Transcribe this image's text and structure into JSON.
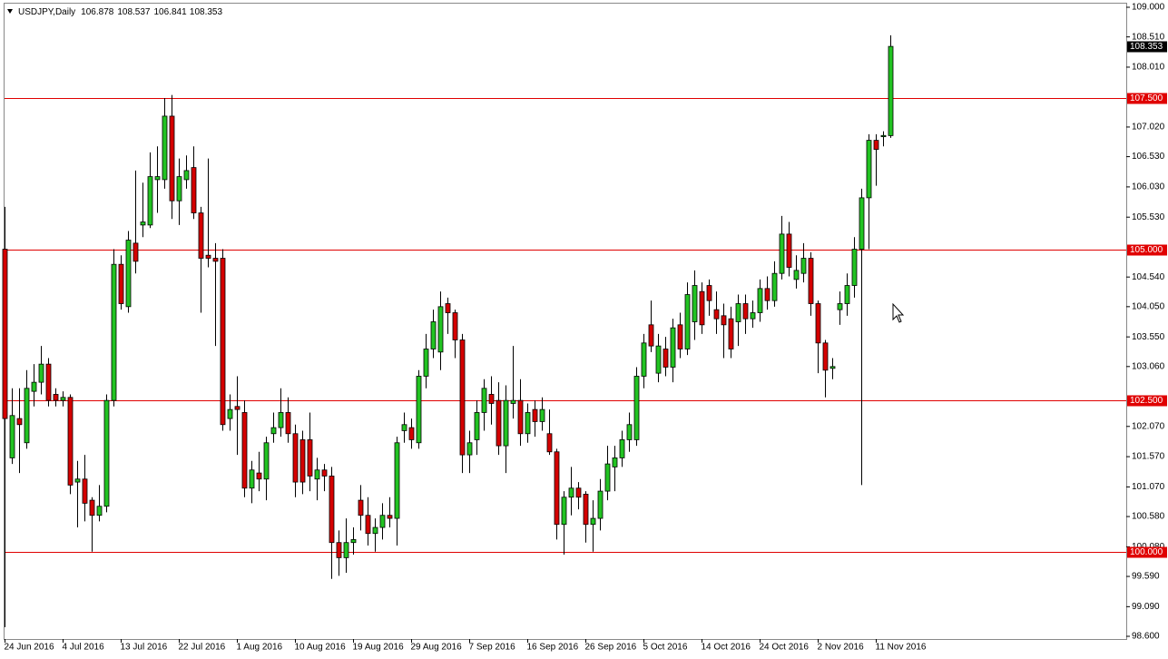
{
  "chart_data": {
    "type": "candlestick",
    "symbol": "USDJPY,Daily",
    "up_color": "#22c322",
    "down_color": "#d40000",
    "level_color": "#e00000",
    "categories": [
      "24 Jun 2016",
      null,
      null,
      null,
      null,
      null,
      null,
      null,
      "4 Jul 2016",
      null,
      null,
      null,
      null,
      null,
      null,
      null,
      "13 Jul 2016",
      null,
      null,
      null,
      null,
      null,
      null,
      null,
      "22 Jul 2016",
      null,
      null,
      null,
      null,
      null,
      null,
      null,
      "1 Aug 2016",
      null,
      null,
      null,
      null,
      null,
      null,
      null,
      "10 Aug 2016",
      null,
      null,
      null,
      null,
      null,
      null,
      null,
      "19 Aug 2016",
      null,
      null,
      null,
      null,
      null,
      null,
      null,
      "29 Aug 2016",
      null,
      null,
      null,
      null,
      null,
      null,
      null,
      "7 Sep 2016",
      null,
      null,
      null,
      null,
      null,
      null,
      null,
      "16 Sep 2016",
      null,
      null,
      null,
      null,
      null,
      null,
      null,
      "26 Sep 2016",
      null,
      null,
      null,
      null,
      null,
      null,
      null,
      "5 Oct 2016",
      null,
      null,
      null,
      null,
      null,
      null,
      null,
      "14 Oct 2016",
      null,
      null,
      null,
      null,
      null,
      null,
      null,
      "24 Oct 2016",
      null,
      null,
      null,
      null,
      null,
      null,
      null,
      "2 Nov 2016",
      null,
      null,
      null,
      null,
      null,
      null,
      null,
      "11 Nov 2016",
      null,
      null
    ],
    "open": [
      105.0,
      101.55,
      102.2,
      101.8,
      102.65,
      102.8,
      103.1,
      102.6,
      102.5,
      102.55,
      101.15,
      101.2,
      100.85,
      100.6,
      100.75,
      102.5,
      104.75,
      104.05,
      105.1,
      105.4,
      105.4,
      106.15,
      106.15,
      107.2,
      105.8,
      106.15,
      106.35,
      105.6,
      104.9,
      104.85,
      104.85,
      102.2,
      102.4,
      102.3,
      101.05,
      101.3,
      101.2,
      101.95,
      102.05,
      102.3,
      101.95,
      101.85,
      101.85,
      101.2,
      101.35,
      101.25,
      100.15,
      99.9,
      100.15,
      100.85,
      100.6,
      100.3,
      100.4,
      100.6,
      100.55,
      102.0,
      102.05,
      101.8,
      102.9,
      103.35,
      103.3,
      104.1,
      103.95,
      103.5,
      101.6,
      101.85,
      102.3,
      102.6,
      102.5,
      101.75,
      102.45,
      102.5,
      101.95,
      102.35,
      102.15,
      101.95,
      101.65,
      100.45,
      100.9,
      101.05,
      100.95,
      100.45,
      100.55,
      101.0,
      101.4,
      101.55,
      101.85,
      101.85,
      102.9,
      103.75,
      102.95,
      103.35,
      103.05,
      103.75,
      103.35,
      103.8,
      104.3,
      104.4,
      104.0,
      103.9,
      103.85,
      103.8,
      104.1,
      103.85,
      103.95,
      104.35,
      104.15,
      104.6,
      105.25,
      104.5,
      104.6,
      104.85,
      104.1,
      103.45,
      103.03,
      104.0,
      104.1,
      104.4,
      105.0,
      105.85,
      106.8,
      106.86,
      106.878
    ],
    "high": [
      105.7,
      102.7,
      102.7,
      103.0,
      103.1,
      103.4,
      103.2,
      102.7,
      102.65,
      102.6,
      101.5,
      101.6,
      100.9,
      101.1,
      102.6,
      105.0,
      104.9,
      105.3,
      106.3,
      106.1,
      106.6,
      106.7,
      107.5,
      107.55,
      106.5,
      106.55,
      106.7,
      105.7,
      106.5,
      105.1,
      105.0,
      102.6,
      102.9,
      102.5,
      101.5,
      101.65,
      101.9,
      102.3,
      102.7,
      102.55,
      102.1,
      102.0,
      102.3,
      101.55,
      101.45,
      101.4,
      100.35,
      100.55,
      100.4,
      101.1,
      100.9,
      100.55,
      100.8,
      100.9,
      101.9,
      102.3,
      102.2,
      103.0,
      103.6,
      104.0,
      104.3,
      104.2,
      104.0,
      103.6,
      102.0,
      102.5,
      102.85,
      102.9,
      102.8,
      102.75,
      103.4,
      102.85,
      102.45,
      102.5,
      102.55,
      102.35,
      101.7,
      101.0,
      101.4,
      101.15,
      101.0,
      100.85,
      101.2,
      101.75,
      101.75,
      102.0,
      102.3,
      103.05,
      103.6,
      104.15,
      103.6,
      103.55,
      103.85,
      103.95,
      104.45,
      104.65,
      104.45,
      104.5,
      104.3,
      104.1,
      104.05,
      104.25,
      104.25,
      104.15,
      104.5,
      104.55,
      104.8,
      105.55,
      105.45,
      104.9,
      105.1,
      104.95,
      104.15,
      103.5,
      103.2,
      104.3,
      104.6,
      105.2,
      106.0,
      106.9,
      106.9,
      106.95,
      108.537
    ],
    "low": [
      98.75,
      101.45,
      101.3,
      101.7,
      102.4,
      102.6,
      102.4,
      102.4,
      102.4,
      100.95,
      100.4,
      100.5,
      100.0,
      100.5,
      100.65,
      102.4,
      104.0,
      103.95,
      104.6,
      105.2,
      105.35,
      105.6,
      106.0,
      105.5,
      105.4,
      106.0,
      105.5,
      103.95,
      104.7,
      103.4,
      102.0,
      102.0,
      101.6,
      100.9,
      100.8,
      101.0,
      100.85,
      101.8,
      101.9,
      101.8,
      100.9,
      100.95,
      101.0,
      100.85,
      101.0,
      99.55,
      99.6,
      99.65,
      99.95,
      100.35,
      100.1,
      100.0,
      100.2,
      100.4,
      100.1,
      101.8,
      101.7,
      101.7,
      102.7,
      103.2,
      103.0,
      103.6,
      103.2,
      101.3,
      101.3,
      101.6,
      102.0,
      102.1,
      101.6,
      101.3,
      102.2,
      101.75,
      101.8,
      101.9,
      102.0,
      101.6,
      100.2,
      99.95,
      100.6,
      100.7,
      100.15,
      100.0,
      100.35,
      100.85,
      101.0,
      101.4,
      101.65,
      101.75,
      102.7,
      103.3,
      102.8,
      102.9,
      102.8,
      103.2,
      103.25,
      103.5,
      103.6,
      103.9,
      103.6,
      103.2,
      103.2,
      103.4,
      103.6,
      103.7,
      103.8,
      104.0,
      104.05,
      104.5,
      104.55,
      104.35,
      104.45,
      103.9,
      102.95,
      102.55,
      102.85,
      103.75,
      103.9,
      104.2,
      101.1,
      105.0,
      106.05,
      106.7,
      106.841
    ],
    "close": [
      102.2,
      102.25,
      102.1,
      102.7,
      102.8,
      103.1,
      102.5,
      102.5,
      102.55,
      101.1,
      101.2,
      100.8,
      100.6,
      100.75,
      102.5,
      104.75,
      104.1,
      105.15,
      104.8,
      105.45,
      106.2,
      106.2,
      107.2,
      105.8,
      106.2,
      106.3,
      105.6,
      104.85,
      104.85,
      104.8,
      102.1,
      102.35,
      102.35,
      101.05,
      101.35,
      101.2,
      101.8,
      102.05,
      102.3,
      101.95,
      101.15,
      101.15,
      101.25,
      101.35,
      101.25,
      100.15,
      99.9,
      100.15,
      100.2,
      100.6,
      100.3,
      100.4,
      100.6,
      100.55,
      101.8,
      102.1,
      101.85,
      102.9,
      103.35,
      103.8,
      104.05,
      103.95,
      103.5,
      101.6,
      101.8,
      102.3,
      102.7,
      102.45,
      101.75,
      102.5,
      102.5,
      101.95,
      102.3,
      102.15,
      102.35,
      101.65,
      100.45,
      100.9,
      101.05,
      100.9,
      100.45,
      100.55,
      101.0,
      101.45,
      101.55,
      101.85,
      102.1,
      102.9,
      103.45,
      103.4,
      103.4,
      103.05,
      103.7,
      103.35,
      104.25,
      104.4,
      103.75,
      104.15,
      103.85,
      103.75,
      103.35,
      104.1,
      103.85,
      103.95,
      104.35,
      104.15,
      104.6,
      105.25,
      104.7,
      104.65,
      104.85,
      104.1,
      103.45,
      103.0,
      103.06,
      104.1,
      104.4,
      105.0,
      105.85,
      106.8,
      106.65,
      106.88,
      108.353
    ],
    "ylim": [
      98.555,
      109.06
    ],
    "yticks": [
      {
        "value": 109.0,
        "label": "109.000"
      },
      {
        "value": 108.51,
        "label": "108.510"
      },
      {
        "value": 108.01,
        "label": "108.010"
      },
      {
        "value": 107.02,
        "label": "107.020"
      },
      {
        "value": 106.53,
        "label": "106.530"
      },
      {
        "value": 106.03,
        "label": "106.030"
      },
      {
        "value": 105.53,
        "label": "105.530"
      },
      {
        "value": 104.54,
        "label": "104.540"
      },
      {
        "value": 104.05,
        "label": "104.050"
      },
      {
        "value": 103.55,
        "label": "103.550"
      },
      {
        "value": 103.06,
        "label": "103.060"
      },
      {
        "value": 102.07,
        "label": "102.070"
      },
      {
        "value": 101.57,
        "label": "101.570"
      },
      {
        "value": 101.07,
        "label": "101.070"
      },
      {
        "value": 100.58,
        "label": "100.580"
      },
      {
        "value": 100.08,
        "label": "100.080"
      },
      {
        "value": 99.59,
        "label": "99.590"
      },
      {
        "value": 99.09,
        "label": "99.090"
      },
      {
        "value": 98.6,
        "label": "98.600"
      }
    ],
    "levels": [
      {
        "value": 107.5,
        "label": "107.500"
      },
      {
        "value": 105.0,
        "label": "105.000"
      },
      {
        "value": 102.5,
        "label": "102.500"
      },
      {
        "value": 100.0,
        "label": "100.000"
      }
    ]
  }
}
